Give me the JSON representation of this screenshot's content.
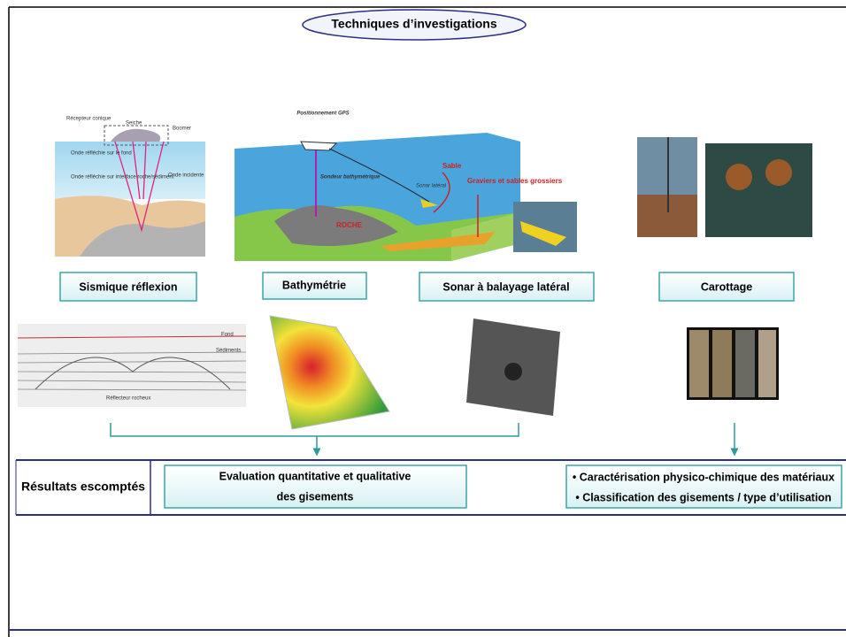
{
  "title": "Techniques d’investigations",
  "techniques": [
    {
      "label": "Sismique réflexion",
      "annotations": [
        "Récepteur conique",
        "Seiche",
        "Boomer",
        "Onde réfléchie sur le fond",
        "Onde incidente",
        "Onde réfléchie sur interface roche/sédiment"
      ],
      "profile_labels": [
        "Fond",
        "Sédiments",
        "Réflecteur rocheux"
      ]
    },
    {
      "label": "Bathymétrie",
      "annotations": [
        "Positionnement GPS",
        "Sondeur bathymétrique",
        "ROCHE"
      ]
    },
    {
      "label": "Sonar à balayage latéral",
      "annotations": [
        "Sonar latéral",
        "Sable",
        "Graviers et sables grossiers"
      ]
    },
    {
      "label": "Carottage"
    }
  ],
  "results": {
    "heading": "Résultats escomptés",
    "quantitative": [
      "Evaluation quantitative et qualitative",
      "des gisements"
    ],
    "characterisation": [
      "• Caractérisation physico-chimique des matériaux",
      "• Classification des gisements / type d’utilisation"
    ]
  }
}
